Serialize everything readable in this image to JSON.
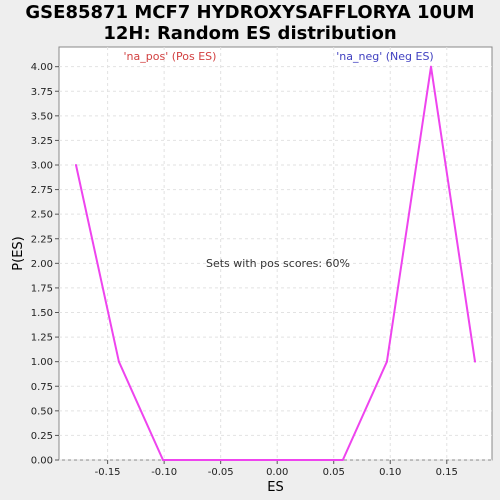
{
  "chart_data": {
    "type": "line",
    "title_line1": "GSE85871 MCF7 HYDROXYSAFFLORYA 10UM",
    "title_line2": "12H: Random ES distribution",
    "xlabel": "ES",
    "ylabel": "P(ES)",
    "xlim": [
      -0.193,
      0.19
    ],
    "ylim": [
      0,
      4.2
    ],
    "x_ticks": [
      "-0.15",
      "-0.10",
      "-0.05",
      "0.00",
      "0.05",
      "0.10",
      "0.15"
    ],
    "x_tick_values": [
      -0.15,
      -0.1,
      -0.05,
      0.0,
      0.05,
      0.1,
      0.15
    ],
    "y_ticks": [
      "0.00",
      "0.25",
      "0.50",
      "0.75",
      "1.00",
      "1.25",
      "1.50",
      "1.75",
      "2.00",
      "2.25",
      "2.50",
      "2.75",
      "3.00",
      "3.25",
      "3.50",
      "3.75",
      "4.00"
    ],
    "y_tick_values": [
      0,
      0.25,
      0.5,
      0.75,
      1,
      1.25,
      1.5,
      1.75,
      2,
      2.25,
      2.5,
      2.75,
      3,
      3.25,
      3.5,
      3.75,
      4
    ],
    "grid": true,
    "series": [
      {
        "color": "#ee44ee",
        "x": [
          -0.178,
          -0.14,
          -0.101,
          0.058,
          0.097,
          0.136,
          0.175
        ],
        "y": [
          3.0,
          1.0,
          0.0,
          0.0,
          1.0,
          4.0,
          1.0
        ]
      }
    ],
    "annotations": {
      "pos_label": "'na_pos' (Pos ES)",
      "neg_label": "'na_neg' (Neg ES)",
      "center_note": "Sets with pos scores: 60%"
    }
  }
}
